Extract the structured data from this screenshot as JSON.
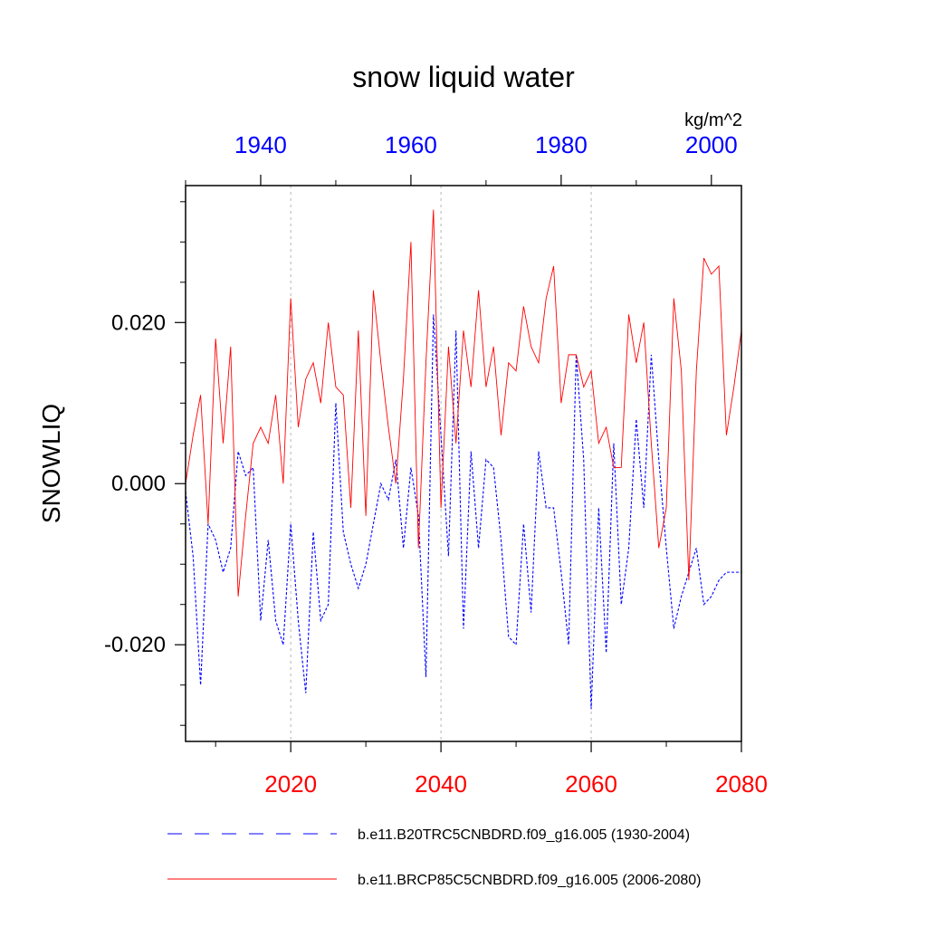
{
  "chart_data": {
    "type": "line",
    "title": "snow liquid water",
    "units": "kg/m^2",
    "ylabel": "SNOWLIQ",
    "ylim": [
      -0.032,
      0.037
    ],
    "yticks": [
      {
        "value": 0.02,
        "label": "0.020"
      },
      {
        "value": 0.0,
        "label": "0.000"
      },
      {
        "value": -0.02,
        "label": "-0.020"
      }
    ],
    "y_minor_ticks": [
      -0.03,
      -0.025,
      -0.015,
      -0.01,
      -0.005,
      0.005,
      0.01,
      0.015,
      0.025,
      0.03,
      0.035
    ],
    "x_bottom": {
      "range": [
        2006,
        2080
      ],
      "ticks": [
        2020,
        2040,
        2060,
        2080
      ],
      "minor_ticks": [
        2010,
        2030,
        2050,
        2070
      ],
      "color": "#ff0000"
    },
    "x_top": {
      "range": [
        1930,
        2004
      ],
      "ticks": [
        1940,
        1960,
        1980,
        2000
      ],
      "minor_ticks": [
        1930,
        1950,
        1970,
        1990
      ],
      "color": "#0000ff"
    },
    "vlines": [
      2020,
      2040,
      2060
    ],
    "series": [
      {
        "name": "b.e11.B20TRC5CNBDRD.f09_g16.005 (1930-2004)",
        "axis": "top",
        "color": "#0000ff",
        "dash": "dashed",
        "x_start": 1930,
        "values": [
          -0.001,
          -0.009,
          -0.025,
          -0.005,
          -0.007,
          -0.011,
          -0.008,
          0.004,
          0.001,
          0.002,
          -0.017,
          -0.007,
          -0.017,
          -0.02,
          -0.005,
          -0.017,
          -0.026,
          -0.006,
          -0.017,
          -0.015,
          0.01,
          -0.006,
          -0.01,
          -0.013,
          -0.01,
          -0.005,
          0.0,
          -0.002,
          0.003,
          -0.008,
          0.002,
          -0.004,
          -0.024,
          0.021,
          0.006,
          -0.009,
          0.019,
          -0.018,
          0.004,
          -0.008,
          0.003,
          0.002,
          -0.007,
          -0.019,
          -0.02,
          -0.005,
          -0.016,
          0.004,
          -0.003,
          -0.003,
          -0.011,
          -0.02,
          0.016,
          0.003,
          -0.028,
          -0.003,
          -0.021,
          0.005,
          -0.015,
          -0.008,
          0.008,
          -0.003,
          0.016,
          0.003,
          -0.008,
          -0.018,
          -0.014,
          -0.011,
          -0.008,
          -0.015,
          -0.014,
          -0.012,
          -0.011,
          -0.011,
          -0.011
        ]
      },
      {
        "name": "b.e11.BRCP85C5CNBDRD.f09_g16.005 (2006-2080)",
        "axis": "bottom",
        "color": "#ff0000",
        "dash": "solid",
        "x_start": 2006,
        "values": [
          0.0,
          0.006,
          0.011,
          -0.005,
          0.018,
          0.005,
          0.017,
          -0.014,
          -0.004,
          0.005,
          0.007,
          0.005,
          0.011,
          0.0,
          0.023,
          0.007,
          0.013,
          0.015,
          0.01,
          0.02,
          0.012,
          0.011,
          -0.003,
          0.019,
          -0.004,
          0.024,
          0.015,
          0.007,
          0.0,
          0.013,
          0.03,
          -0.008,
          0.015,
          0.034,
          -0.003,
          0.017,
          0.005,
          0.019,
          0.012,
          0.024,
          0.012,
          0.017,
          0.006,
          0.015,
          0.014,
          0.022,
          0.017,
          0.015,
          0.023,
          0.027,
          0.01,
          0.016,
          0.016,
          0.012,
          0.014,
          0.005,
          0.007,
          0.002,
          0.002,
          0.021,
          0.015,
          0.02,
          0.005,
          -0.008,
          -0.003,
          0.023,
          0.014,
          -0.012,
          0.014,
          0.028,
          0.026,
          0.027,
          0.006,
          0.012,
          0.019
        ]
      }
    ],
    "legend": [
      {
        "label": "b.e11.B20TRC5CNBDRD.f09_g16.005 (1930-2004)",
        "color": "#0000ff",
        "dash": "dashed"
      },
      {
        "label": "b.e11.BRCP85C5CNBDRD.f09_g16.005 (2006-2080)",
        "color": "#ff0000",
        "dash": "solid"
      }
    ]
  }
}
